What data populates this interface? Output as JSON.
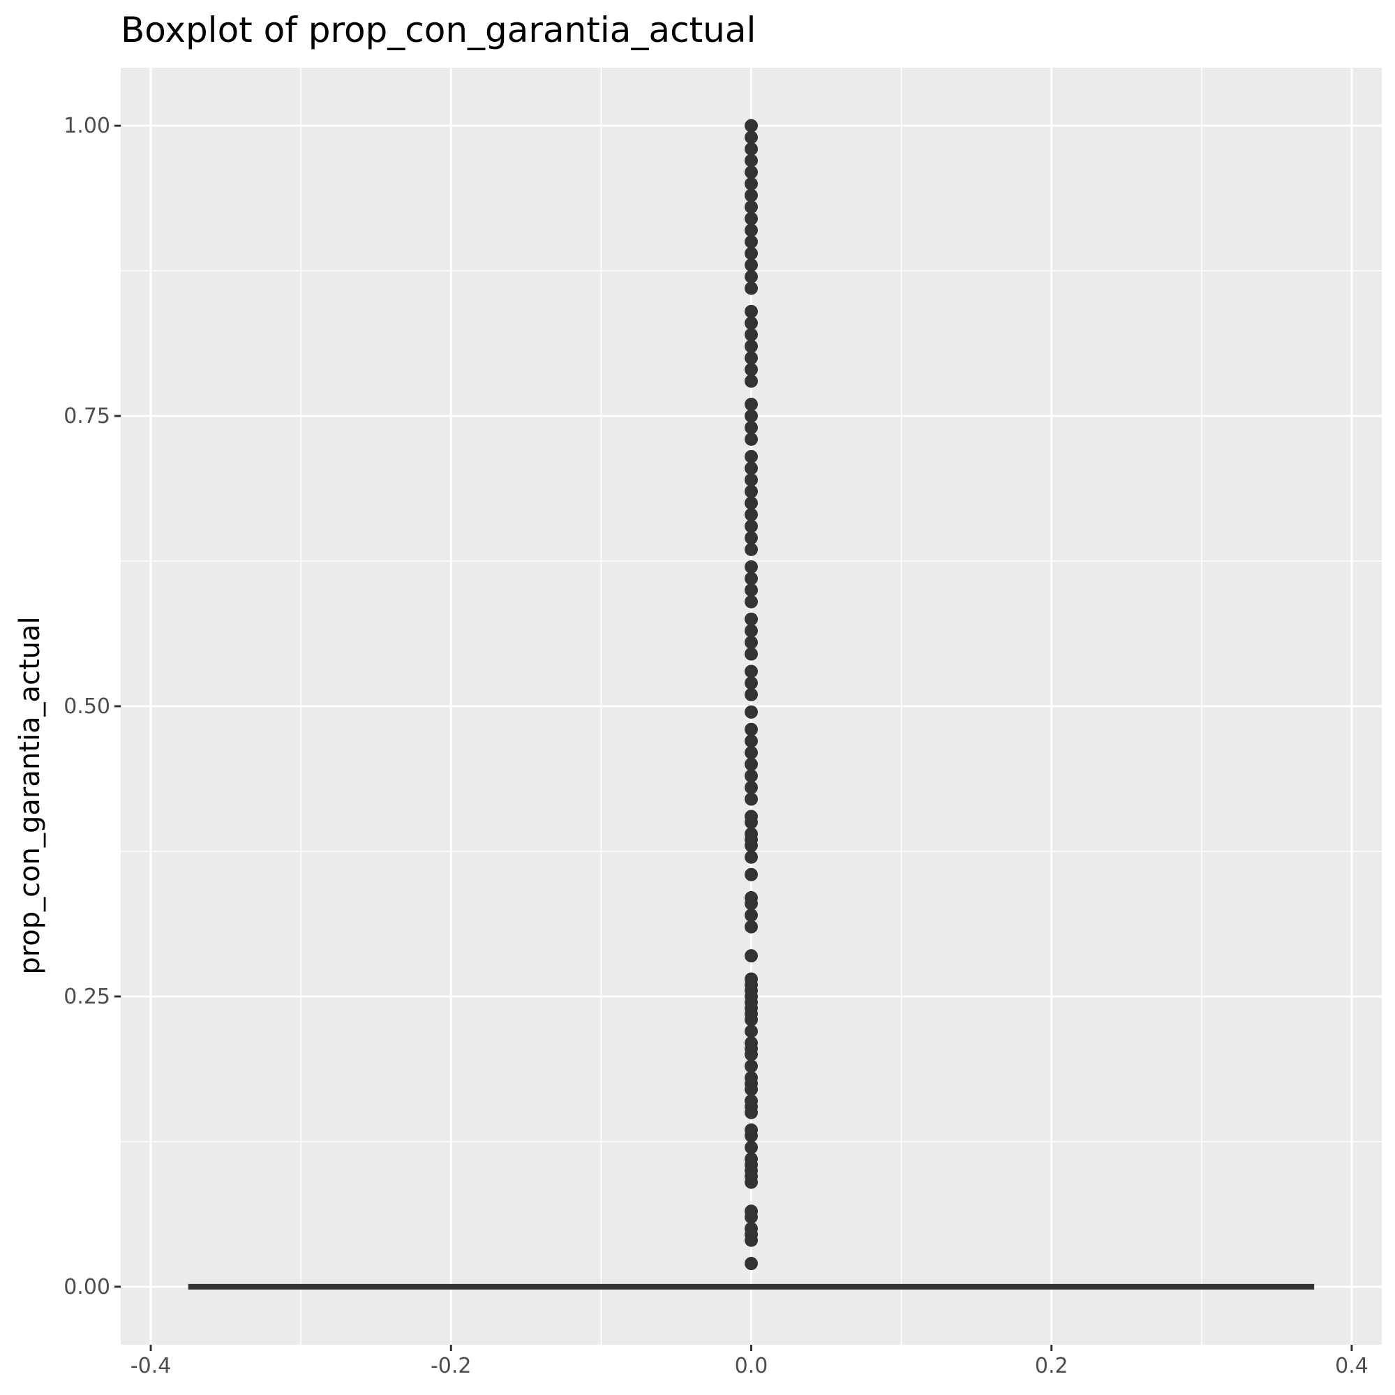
{
  "chart_data": {
    "type": "boxplot",
    "title": "Boxplot of prop_con_garantia_actual",
    "xlabel": "",
    "ylabel": "prop_con_garantia_actual",
    "xlim": [
      -0.42,
      0.42
    ],
    "ylim": [
      -0.05,
      1.05
    ],
    "x_ticks": [
      -0.4,
      -0.2,
      0.0,
      0.2,
      0.4
    ],
    "x_tick_labels": [
      "-0.4",
      "-0.2",
      "0.0",
      "0.2",
      "0.4"
    ],
    "y_ticks": [
      0.0,
      0.25,
      0.5,
      0.75,
      1.0
    ],
    "y_tick_labels": [
      "0.00",
      "0.25",
      "0.50",
      "0.75",
      "1.00"
    ],
    "grid": true,
    "box": {
      "x": 0.0,
      "width": 0.75,
      "lower_whisker": 0.0,
      "q1": 0.0,
      "median": 0.0,
      "q3": 0.0,
      "upper_whisker": 0.0
    },
    "outliers": [
      0.02,
      0.04,
      0.045,
      0.05,
      0.06,
      0.065,
      0.09,
      0.095,
      0.1,
      0.105,
      0.11,
      0.12,
      0.13,
      0.135,
      0.15,
      0.155,
      0.16,
      0.17,
      0.175,
      0.18,
      0.19,
      0.2,
      0.205,
      0.21,
      0.22,
      0.23,
      0.235,
      0.24,
      0.245,
      0.25,
      0.255,
      0.26,
      0.265,
      0.285,
      0.31,
      0.32,
      0.33,
      0.335,
      0.355,
      0.37,
      0.38,
      0.385,
      0.39,
      0.4,
      0.405,
      0.42,
      0.43,
      0.44,
      0.45,
      0.46,
      0.47,
      0.48,
      0.495,
      0.51,
      0.52,
      0.53,
      0.545,
      0.555,
      0.565,
      0.575,
      0.59,
      0.6,
      0.61,
      0.62,
      0.635,
      0.645,
      0.655,
      0.665,
      0.675,
      0.685,
      0.695,
      0.705,
      0.715,
      0.73,
      0.74,
      0.75,
      0.76,
      0.78,
      0.79,
      0.8,
      0.81,
      0.82,
      0.83,
      0.84,
      0.86,
      0.87,
      0.88,
      0.89,
      0.9,
      0.91,
      0.92,
      0.93,
      0.94,
      0.95,
      0.96,
      0.97,
      0.98,
      0.99,
      1.0
    ],
    "colors": {
      "panel": "#ebebeb",
      "grid_major": "#ffffff",
      "grid_minor": "#f5f5f5",
      "box": "#333333",
      "outlier": "#333333",
      "tick": "#333333",
      "tick_label": "#4d4d4d"
    }
  }
}
